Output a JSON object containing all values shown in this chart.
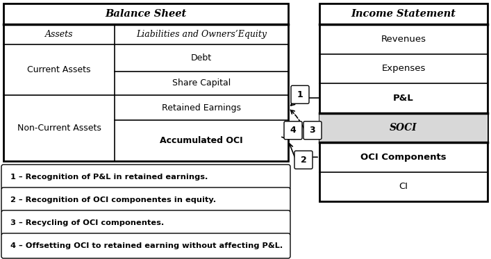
{
  "fig_width": 7.07,
  "fig_height": 3.73,
  "bg_color": "#ffffff",
  "bs_title": "Balance Sheet",
  "is_title": "Income Statement",
  "bs_col_left": "Assets",
  "bs_col_right": "Liabilities and Owners’Equity",
  "bs_rows_right": [
    "Debt",
    "Share Capital",
    "Retained Earnings",
    "Accumulated OCI"
  ],
  "bs_current": "Current Assets",
  "bs_noncurrent": "Non-Current Assets",
  "is_rows": [
    "Revenues",
    "Expenses",
    "P&L",
    "SOCI",
    "OCI Components",
    "CI"
  ],
  "legend": [
    "1 – Recognition of P&L in retained earnings.",
    "2 – Recognition of OCI componentes in equity.",
    "3 – Recycling of OCI componentes.",
    "4 – Offsetting OCI to retained earning without affecting P&L."
  ],
  "soci_fill": "#d8d8d8"
}
